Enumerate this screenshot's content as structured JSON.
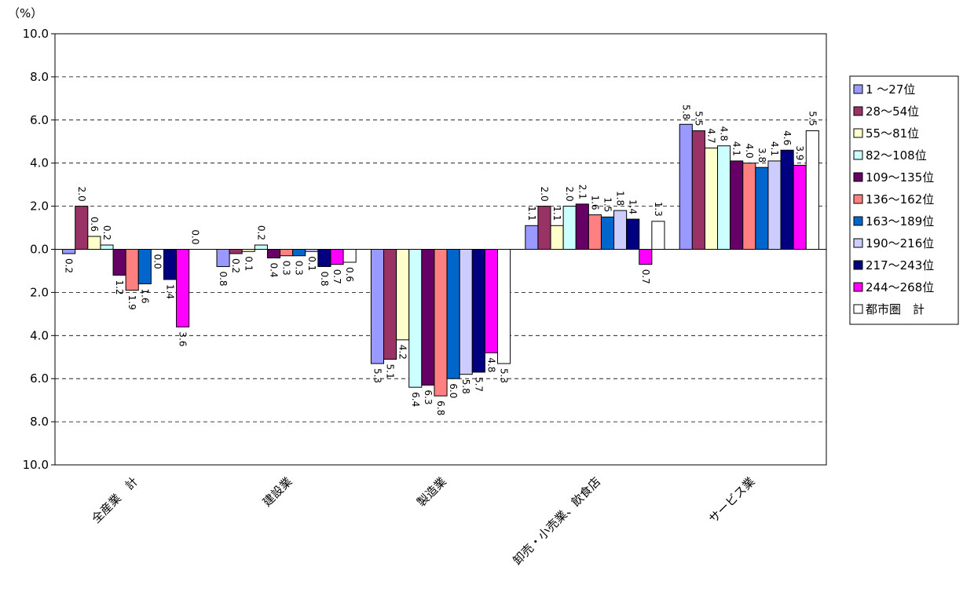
{
  "chart_data": {
    "type": "bar",
    "unit_label": "（%）",
    "categories": [
      "全産業　計",
      "建設業",
      "製造業",
      "卸売・小売業、飲食店",
      "サービス業"
    ],
    "series": [
      {
        "name": "1 ～27位",
        "color": "#9999ff",
        "values": [
          -0.2,
          -0.8,
          -5.3,
          1.1,
          5.8
        ],
        "value_labels": [
          "0.2",
          "0.8",
          "5.3",
          "1.1",
          "5.8"
        ]
      },
      {
        "name": "28～54位",
        "color": "#993366",
        "values": [
          2.0,
          -0.2,
          -5.1,
          2.0,
          5.5
        ],
        "value_labels": [
          "2.0",
          "0.2",
          "5.1",
          "2.0",
          "5.5"
        ]
      },
      {
        "name": "55～81位",
        "color": "#ffffcc",
        "values": [
          0.6,
          -0.1,
          -4.2,
          1.1,
          4.7
        ],
        "value_labels": [
          "0.6",
          "0.1",
          "4.2",
          "1.1",
          "4.7"
        ]
      },
      {
        "name": "82～108位",
        "color": "#ccffff",
        "values": [
          0.2,
          0.2,
          -6.4,
          2.0,
          4.8
        ],
        "value_labels": [
          "0.2",
          "0.2",
          "6.4",
          "2.0",
          "4.8"
        ]
      },
      {
        "name": "109～135位",
        "color": "#660066",
        "values": [
          -1.2,
          -0.4,
          -6.3,
          2.1,
          4.1
        ],
        "value_labels": [
          "1.2",
          "0.4",
          "6.3",
          "2.1",
          "4.1"
        ]
      },
      {
        "name": "136～162位",
        "color": "#ff8080",
        "values": [
          -1.9,
          -0.3,
          -6.8,
          1.6,
          4.0
        ],
        "value_labels": [
          "1.9",
          "0.3",
          "6.8",
          "1.6",
          "4.0"
        ]
      },
      {
        "name": "163～189位",
        "color": "#0066cc",
        "values": [
          -1.6,
          -0.3,
          -6.0,
          1.5,
          3.8
        ],
        "value_labels": [
          "1.6",
          "0.3",
          "6.0",
          "1.5",
          "3.8"
        ]
      },
      {
        "name": "190～216位",
        "color": "#ccccff",
        "values": [
          0.0,
          -0.1,
          -5.8,
          1.8,
          4.1
        ],
        "value_labels": [
          "0.0",
          "0.1",
          "5.8",
          "1.8",
          "4.1"
        ]
      },
      {
        "name": "217～243位",
        "color": "#000080",
        "values": [
          -1.4,
          -0.8,
          -5.7,
          1.4,
          4.6
        ],
        "value_labels": [
          "1.4",
          "0.8",
          "5.7",
          "1.4",
          "4.6"
        ]
      },
      {
        "name": "244～268位",
        "color": "#ff00ff",
        "values": [
          -3.6,
          -0.7,
          -4.8,
          -0.7,
          3.9
        ],
        "value_labels": [
          "3.6",
          "0.7",
          "4.8",
          "0.7",
          "3.9"
        ]
      },
      {
        "name": "都市圏　計",
        "color": "#ffffff",
        "values": [
          0.0,
          -0.6,
          -5.3,
          1.3,
          5.5
        ],
        "value_labels": [
          "0.0",
          "0.6",
          "5.3",
          "1.3",
          "5.5"
        ]
      }
    ],
    "ylim": [
      -10,
      10
    ],
    "yticks": [
      {
        "value": -10,
        "label": "10.0"
      },
      {
        "value": -8,
        "label": "8.0"
      },
      {
        "value": -6,
        "label": "6.0"
      },
      {
        "value": -4,
        "label": "4.0"
      },
      {
        "value": -2,
        "label": "2.0"
      },
      {
        "value": 0,
        "label": "0.0"
      },
      {
        "value": 2,
        "label": "2.0"
      },
      {
        "value": 4,
        "label": "4.0"
      },
      {
        "value": 6,
        "label": "6.0"
      },
      {
        "value": 8,
        "label": "8.0"
      },
      {
        "value": 10,
        "label": "10.0"
      }
    ],
    "grid": true,
    "legend": "right"
  }
}
